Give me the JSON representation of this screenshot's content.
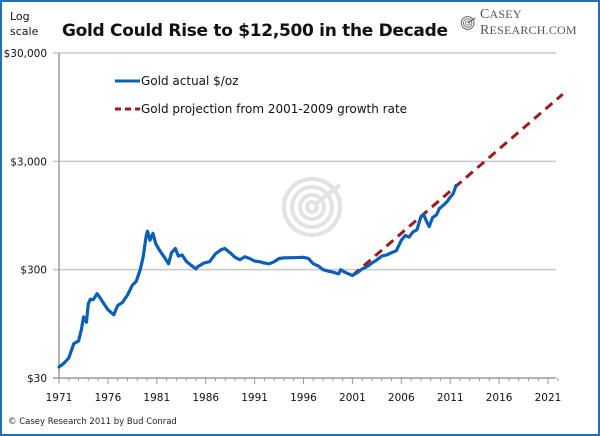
{
  "header": {
    "scale_note_line1": "Log",
    "scale_note_line2": "scale",
    "brand_first": "C",
    "brand_first_rest": "ASEY ",
    "brand_second": "R",
    "brand_second_rest": "ESEARCH.COM",
    "brand_icon": "spiral-target-icon"
  },
  "footer": {
    "credit": "© Casey Research 2011 by Bud Conrad"
  },
  "colors": {
    "actual": "#0b5fb8",
    "projection": "#9b1b20",
    "grid": "#c8c8c8",
    "axis": "#9a9a9a",
    "frame": "#1f6fbf",
    "watermark": "#e2e2e2"
  },
  "chart_data": {
    "type": "line",
    "title": "Gold Could Rise to $12,500 in the Decade",
    "xlabel": "",
    "ylabel": "Log scale",
    "y_scale": "log",
    "ylim": [
      30,
      30000
    ],
    "xlim": [
      1971,
      2022.5
    ],
    "grid": true,
    "legend_position": "top-left",
    "y_ticks": [
      30,
      300,
      3000,
      30000
    ],
    "y_tick_labels": [
      "$30",
      "$300",
      "$3,000",
      "$30,000"
    ],
    "x_ticks": [
      1971,
      1976,
      1981,
      1986,
      1991,
      1996,
      2001,
      2006,
      2011,
      2016,
      2021
    ],
    "x_tick_labels": [
      "1971",
      "1976",
      "1981",
      "1986",
      "1991",
      "1996",
      "2001",
      "2006",
      "2011",
      "2016",
      "2021"
    ],
    "series": [
      {
        "name": "Gold actual $/oz",
        "style": "solid",
        "x": [
          1971.0,
          1971.5,
          1972.0,
          1972.5,
          1973.0,
          1973.3,
          1973.5,
          1973.8,
          1974.0,
          1974.2,
          1974.5,
          1974.9,
          1975.2,
          1975.6,
          1976.0,
          1976.6,
          1977.0,
          1977.5,
          1978.0,
          1978.5,
          1978.9,
          1979.3,
          1979.6,
          1979.9,
          1980.05,
          1980.3,
          1980.6,
          1980.9,
          1981.3,
          1981.7,
          1982.2,
          1982.5,
          1982.9,
          1983.2,
          1983.6,
          1984.0,
          1984.5,
          1985.0,
          1985.2,
          1985.8,
          1986.4,
          1987.0,
          1987.6,
          1987.95,
          1988.5,
          1989.0,
          1989.5,
          1990.0,
          1990.5,
          1991.0,
          1991.5,
          1992.0,
          1992.5,
          1993.0,
          1993.5,
          1994.0,
          1995.0,
          1996.0,
          1996.5,
          1997.0,
          1997.5,
          1998.0,
          1998.6,
          1999.0,
          1999.6,
          1999.8,
          2000.2,
          2000.6,
          2001.0,
          2001.3,
          2001.7,
          2002.0,
          2002.5,
          2003.0,
          2003.5,
          2004.0,
          2004.5,
          2005.0,
          2005.5,
          2006.0,
          2006.4,
          2006.8,
          2007.2,
          2007.6,
          2008.0,
          2008.3,
          2008.6,
          2008.85,
          2009.2,
          2009.6,
          2009.9,
          2010.3,
          2010.7,
          2011.0,
          2011.3,
          2011.6
        ],
        "values": [
          38,
          41,
          46,
          62,
          66,
          85,
          110,
          98,
          145,
          160,
          158,
          180,
          165,
          145,
          128,
          115,
          140,
          150,
          175,
          215,
          235,
          300,
          390,
          600,
          680,
          560,
          650,
          520,
          450,
          400,
          340,
          430,
          470,
          400,
          410,
          360,
          330,
          305,
          320,
          345,
          355,
          420,
          460,
          470,
          430,
          390,
          370,
          395,
          380,
          360,
          355,
          345,
          340,
          355,
          380,
          385,
          387,
          390,
          380,
          340,
          325,
          300,
          290,
          285,
          275,
          300,
          285,
          275,
          265,
          275,
          290,
          305,
          320,
          345,
          370,
          400,
          410,
          430,
          450,
          560,
          620,
          600,
          670,
          700,
          920,
          960,
          830,
          750,
          910,
          960,
          1100,
          1180,
          1280,
          1400,
          1500,
          1800
        ]
      },
      {
        "name": "Gold projection from 2001-2009 growth rate",
        "style": "dashed",
        "x": [
          2001.0,
          2022.5
        ],
        "values": [
          265,
          12500
        ]
      }
    ]
  }
}
